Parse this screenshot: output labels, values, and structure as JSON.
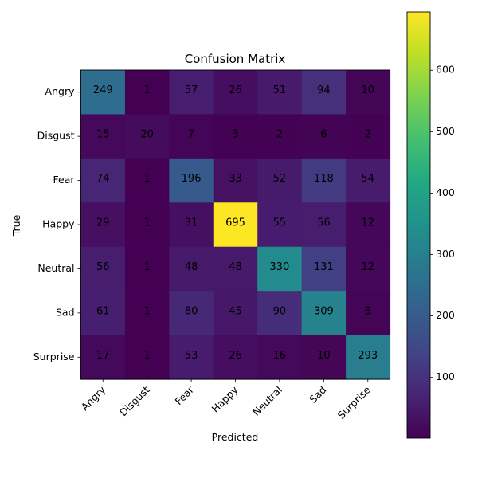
{
  "chart_data": {
    "type": "heatmap",
    "title": "Confusion Matrix",
    "xlabel": "Predicted",
    "ylabel": "True",
    "x_categories": [
      "Angry",
      "Disgust",
      "Fear",
      "Happy",
      "Neutral",
      "Sad",
      "Surprise"
    ],
    "y_categories": [
      "Angry",
      "Disgust",
      "Fear",
      "Happy",
      "Neutral",
      "Sad",
      "Surprise"
    ],
    "values": [
      [
        249,
        1,
        57,
        26,
        51,
        94,
        10
      ],
      [
        15,
        20,
        7,
        3,
        2,
        6,
        2
      ],
      [
        74,
        1,
        196,
        33,
        52,
        118,
        54
      ],
      [
        29,
        1,
        31,
        695,
        55,
        56,
        12
      ],
      [
        56,
        1,
        48,
        48,
        330,
        131,
        12
      ],
      [
        61,
        1,
        80,
        45,
        90,
        309,
        8
      ],
      [
        17,
        1,
        53,
        26,
        16,
        10,
        293
      ]
    ],
    "colormap": "viridis",
    "vmin": 1,
    "vmax": 695,
    "colorbar_ticks": [
      100,
      200,
      300,
      400,
      500,
      600
    ],
    "grid": false
  }
}
